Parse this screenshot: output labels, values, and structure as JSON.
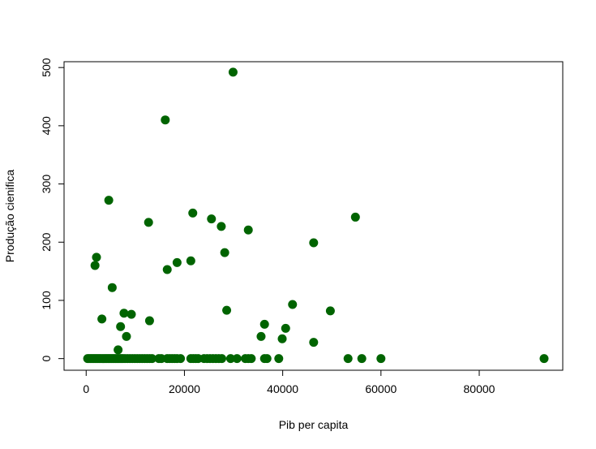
{
  "chart_data": {
    "type": "scatter",
    "title": "",
    "xlabel": "Pib per capita",
    "ylabel": "Produção cienifica",
    "xlim": [
      -4500,
      97000
    ],
    "ylim": [
      -20,
      510
    ],
    "xticks": [
      0,
      20000,
      40000,
      60000,
      80000
    ],
    "yticks": [
      0,
      100,
      200,
      300,
      400,
      500
    ],
    "xtick_labels": [
      "0",
      "20000",
      "40000",
      "60000",
      "80000"
    ],
    "ytick_labels": [
      "0",
      "100",
      "200",
      "300",
      "400",
      "500"
    ],
    "grid": false,
    "point_color": "#006400",
    "series": [
      {
        "points": [
          {
            "x": 300,
            "y": 0
          },
          {
            "x": 600,
            "y": 0
          },
          {
            "x": 900,
            "y": 0
          },
          {
            "x": 1200,
            "y": 0
          },
          {
            "x": 1500,
            "y": 0
          },
          {
            "x": 1800,
            "y": 0
          },
          {
            "x": 2100,
            "y": 0
          },
          {
            "x": 2400,
            "y": 0
          },
          {
            "x": 2700,
            "y": 0
          },
          {
            "x": 3000,
            "y": 0
          },
          {
            "x": 3300,
            "y": 0
          },
          {
            "x": 3600,
            "y": 0
          },
          {
            "x": 3900,
            "y": 0
          },
          {
            "x": 4200,
            "y": 0
          },
          {
            "x": 4500,
            "y": 0
          },
          {
            "x": 4800,
            "y": 0
          },
          {
            "x": 5100,
            "y": 0
          },
          {
            "x": 5400,
            "y": 0
          },
          {
            "x": 5700,
            "y": 0
          },
          {
            "x": 6000,
            "y": 0
          },
          {
            "x": 6300,
            "y": 0
          },
          {
            "x": 6600,
            "y": 0
          },
          {
            "x": 6900,
            "y": 0
          },
          {
            "x": 7200,
            "y": 0
          },
          {
            "x": 7500,
            "y": 0
          },
          {
            "x": 7900,
            "y": 0
          },
          {
            "x": 8400,
            "y": 0
          },
          {
            "x": 8900,
            "y": 0
          },
          {
            "x": 9400,
            "y": 0
          },
          {
            "x": 9900,
            "y": 0
          },
          {
            "x": 10400,
            "y": 0
          },
          {
            "x": 10900,
            "y": 0
          },
          {
            "x": 11400,
            "y": 0
          },
          {
            "x": 11900,
            "y": 0
          },
          {
            "x": 12400,
            "y": 0
          },
          {
            "x": 12900,
            "y": 0
          },
          {
            "x": 13400,
            "y": 0
          },
          {
            "x": 14800,
            "y": 0
          },
          {
            "x": 15300,
            "y": 0
          },
          {
            "x": 16500,
            "y": 0
          },
          {
            "x": 17000,
            "y": 0
          },
          {
            "x": 17500,
            "y": 0
          },
          {
            "x": 18000,
            "y": 0
          },
          {
            "x": 18500,
            "y": 0
          },
          {
            "x": 19200,
            "y": 0
          },
          {
            "x": 21300,
            "y": 0
          },
          {
            "x": 21800,
            "y": 0
          },
          {
            "x": 22300,
            "y": 0
          },
          {
            "x": 22800,
            "y": 0
          },
          {
            "x": 24000,
            "y": 0
          },
          {
            "x": 24600,
            "y": 0
          },
          {
            "x": 25200,
            "y": 0
          },
          {
            "x": 25800,
            "y": 0
          },
          {
            "x": 26400,
            "y": 0
          },
          {
            "x": 27000,
            "y": 0
          },
          {
            "x": 27600,
            "y": 0
          },
          {
            "x": 29400,
            "y": 0
          },
          {
            "x": 30700,
            "y": 0
          },
          {
            "x": 32400,
            "y": 0
          },
          {
            "x": 33000,
            "y": 0
          },
          {
            "x": 33600,
            "y": 0
          },
          {
            "x": 36300,
            "y": 0
          },
          {
            "x": 36800,
            "y": 0
          },
          {
            "x": 39200,
            "y": 0
          },
          {
            "x": 53300,
            "y": 0
          },
          {
            "x": 56100,
            "y": 0
          },
          {
            "x": 60000,
            "y": 0
          },
          {
            "x": 93200,
            "y": 0
          },
          {
            "x": 1800,
            "y": 160
          },
          {
            "x": 2100,
            "y": 174
          },
          {
            "x": 3200,
            "y": 68
          },
          {
            "x": 4600,
            "y": 272
          },
          {
            "x": 5300,
            "y": 122
          },
          {
            "x": 6500,
            "y": 15
          },
          {
            "x": 7000,
            "y": 55
          },
          {
            "x": 7700,
            "y": 78
          },
          {
            "x": 8200,
            "y": 38
          },
          {
            "x": 9200,
            "y": 76
          },
          {
            "x": 12700,
            "y": 234
          },
          {
            "x": 12900,
            "y": 65
          },
          {
            "x": 16100,
            "y": 410
          },
          {
            "x": 16500,
            "y": 153
          },
          {
            "x": 18500,
            "y": 165
          },
          {
            "x": 21300,
            "y": 168
          },
          {
            "x": 21700,
            "y": 250
          },
          {
            "x": 25500,
            "y": 240
          },
          {
            "x": 27500,
            "y": 227
          },
          {
            "x": 28200,
            "y": 182
          },
          {
            "x": 28600,
            "y": 83
          },
          {
            "x": 29900,
            "y": 492
          },
          {
            "x": 33000,
            "y": 221
          },
          {
            "x": 35600,
            "y": 38
          },
          {
            "x": 36300,
            "y": 59
          },
          {
            "x": 39900,
            "y": 34
          },
          {
            "x": 40600,
            "y": 52
          },
          {
            "x": 42000,
            "y": 93
          },
          {
            "x": 46300,
            "y": 199
          },
          {
            "x": 46300,
            "y": 28
          },
          {
            "x": 49700,
            "y": 82
          },
          {
            "x": 54800,
            "y": 243
          }
        ]
      }
    ]
  }
}
